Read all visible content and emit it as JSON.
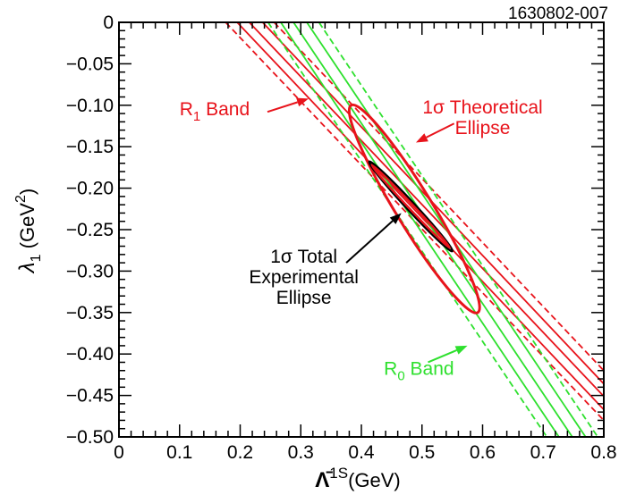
{
  "figure_id": "1630802-007",
  "chart_data": {
    "type": "line",
    "xlabel_main": "Λ̄",
    "xlabel_sup": "1S",
    "xlabel_unit": "(GeV)",
    "ylabel_main": "λ",
    "ylabel_sub": "1",
    "ylabel_unit_pre": " (GeV",
    "ylabel_unit_sup": "2",
    "ylabel_unit_post": ")",
    "xlim": [
      0,
      0.8
    ],
    "ylim": [
      -0.5,
      0
    ],
    "xticks": [
      0,
      0.1,
      0.2,
      0.3,
      0.4,
      0.5,
      0.6,
      0.7,
      0.8
    ],
    "xtick_labels": [
      "0",
      "0.1",
      "0.2",
      "0.3",
      "0.4",
      "0.5",
      "0.6",
      "0.7",
      "0.8"
    ],
    "yticks": [
      0,
      -0.05,
      -0.1,
      -0.15,
      -0.2,
      -0.25,
      -0.3,
      -0.35,
      -0.4,
      -0.45,
      -0.5
    ],
    "ytick_labels": [
      "0",
      "−0.05",
      "−0.10",
      "−0.15",
      "−0.20",
      "−0.25",
      "−0.30",
      "−0.35",
      "−0.40",
      "−0.45",
      "−0.50"
    ],
    "colors": {
      "r1": "#e8131b",
      "r0": "#2ee02e",
      "total": "#000000"
    },
    "bands": [
      {
        "name": "r1-band-center",
        "color": "r1",
        "dashed": false,
        "points": [
          [
            0.215,
            0.0
          ],
          [
            0.8,
            -0.451
          ]
        ]
      },
      {
        "name": "r1-band-upper-solid",
        "color": "r1",
        "dashed": false,
        "points": [
          [
            0.237,
            0.0
          ],
          [
            0.8,
            -0.436
          ]
        ]
      },
      {
        "name": "r1-band-lower-solid",
        "color": "r1",
        "dashed": false,
        "points": [
          [
            0.195,
            0.0
          ],
          [
            0.8,
            -0.467
          ]
        ]
      },
      {
        "name": "r1-band-upper-dashed",
        "color": "r1",
        "dashed": true,
        "points": [
          [
            0.256,
            0.0
          ],
          [
            0.8,
            -0.42
          ]
        ]
      },
      {
        "name": "r1-band-lower-dashed",
        "color": "r1",
        "dashed": true,
        "points": [
          [
            0.176,
            0.0
          ],
          [
            0.8,
            -0.48
          ]
        ]
      },
      {
        "name": "r0-band-center",
        "color": "r0",
        "dashed": false,
        "points": [
          [
            0.288,
            0.0
          ],
          [
            0.748,
            -0.5
          ]
        ]
      },
      {
        "name": "r0-band-upper-solid",
        "color": "r0",
        "dashed": false,
        "points": [
          [
            0.31,
            0.0
          ],
          [
            0.77,
            -0.5
          ]
        ]
      },
      {
        "name": "r0-band-lower-solid",
        "color": "r0",
        "dashed": false,
        "points": [
          [
            0.267,
            0.0
          ],
          [
            0.726,
            -0.5
          ]
        ]
      },
      {
        "name": "r0-band-upper-dashed",
        "color": "r0",
        "dashed": true,
        "points": [
          [
            0.33,
            0.0
          ],
          [
            0.79,
            -0.5
          ]
        ]
      },
      {
        "name": "r0-band-lower-dashed",
        "color": "r0",
        "dashed": true,
        "points": [
          [
            0.246,
            0.0
          ],
          [
            0.706,
            -0.5
          ]
        ]
      }
    ],
    "ellipses": [
      {
        "name": "theoretical-ellipse",
        "color": "r1",
        "center": [
          0.487,
          -0.225
        ],
        "tips": [
          [
            0.383,
            -0.1
          ],
          [
            0.592,
            -0.35
          ]
        ],
        "half_width": 0.03
      },
      {
        "name": "experimental-outer-ellipse",
        "color": "total",
        "center": [
          0.4815,
          -0.222
        ],
        "tips": [
          [
            0.413,
            -0.168
          ],
          [
            0.55,
            -0.276
          ]
        ],
        "half_width": 0.007
      },
      {
        "name": "experimental-inner-ellipse",
        "color": "r1",
        "center": [
          0.4815,
          -0.222
        ],
        "tips": [
          [
            0.417,
            -0.172
          ],
          [
            0.546,
            -0.272
          ]
        ],
        "half_width": 0.004
      }
    ],
    "annotations": [
      {
        "name": "r1-band-label",
        "color": "r1",
        "lines": [
          {
            "parts": [
              [
                "R",
                ""
              ],
              [
                "1",
                "sub"
              ],
              [
                " Band",
                ""
              ]
            ]
          }
        ],
        "text_at": [
          0.1,
          -0.112
        ],
        "anchor": "start",
        "arrow_from": [
          0.245,
          -0.108
        ],
        "arrow_to": [
          0.313,
          -0.092
        ]
      },
      {
        "name": "theoretical-ellipse-label",
        "color": "r1",
        "lines": [
          {
            "parts": [
              [
                "1σ Theoretical",
                ""
              ]
            ]
          },
          {
            "parts": [
              [
                "Ellipse",
                ""
              ]
            ]
          }
        ],
        "text_at": [
          0.6,
          -0.11
        ],
        "anchor": "middle",
        "arrow_from": [
          0.553,
          -0.122
        ],
        "arrow_to": [
          0.49,
          -0.145
        ]
      },
      {
        "name": "experimental-ellipse-label",
        "color": "total",
        "lines": [
          {
            "parts": [
              [
                "1σ Total",
                ""
              ]
            ]
          },
          {
            "parts": [
              [
                "Experimental",
                ""
              ]
            ]
          },
          {
            "parts": [
              [
                "Ellipse",
                ""
              ]
            ]
          }
        ],
        "text_at": [
          0.305,
          -0.29
        ],
        "anchor": "middle",
        "arrow_from": [
          0.375,
          -0.29
        ],
        "arrow_to": [
          0.466,
          -0.23
        ]
      },
      {
        "name": "r0-band-label",
        "color": "r0",
        "lines": [
          {
            "parts": [
              [
                "R",
                ""
              ],
              [
                "0",
                "sub"
              ],
              [
                " Band",
                ""
              ]
            ]
          }
        ],
        "text_at": [
          0.495,
          -0.425
        ],
        "anchor": "middle",
        "arrow_from": [
          0.51,
          -0.41
        ],
        "arrow_to": [
          0.575,
          -0.39
        ]
      }
    ]
  }
}
